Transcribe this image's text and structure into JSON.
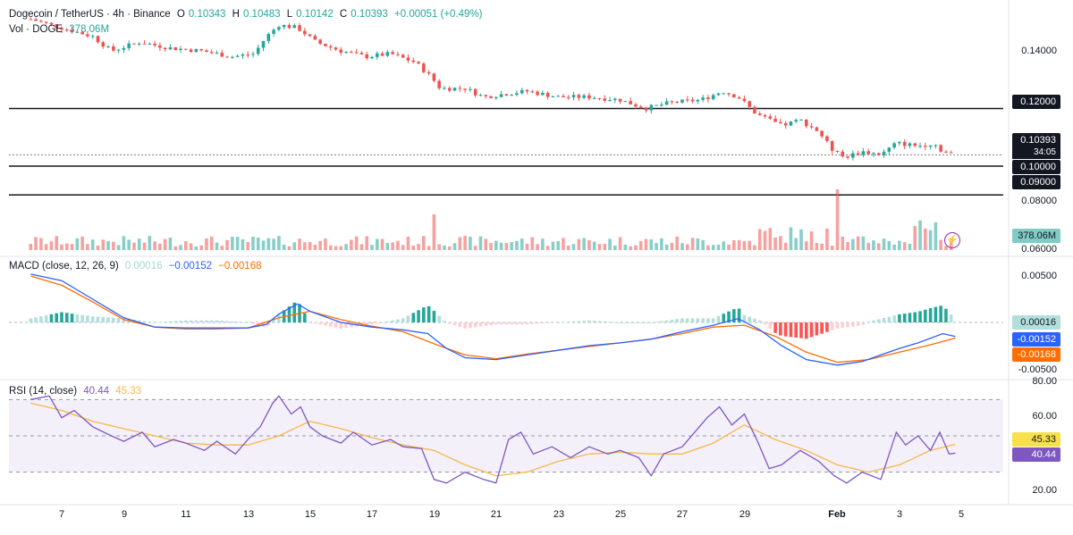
{
  "header": {
    "symbol": "Dogecoin / TetherUS · 4h · Binance",
    "open_label": "O",
    "open": "0.10343",
    "high_label": "H",
    "high": "0.10483",
    "low_label": "L",
    "low": "0.10142",
    "close_label": "C",
    "close": "0.10393",
    "change": "+0.00051 (+0.49%)",
    "vol_label": "Vol · DOGE",
    "vol_value": "378.06M"
  },
  "macd_legend": {
    "label": "MACD (close, 12, 26, 9)",
    "hist": "0.00016",
    "macd": "−0.00152",
    "signal": "−0.00168"
  },
  "rsi_legend": {
    "label": "RSI (14, close)",
    "rsi": "40.44",
    "ma": "45.33"
  },
  "price_axis": {
    "ticks": [
      "0.14000",
      "0.08000",
      "0.06000"
    ],
    "last_price": "0.10393",
    "countdown": "34:05",
    "level_1": "0.12000",
    "level_2": "0.10000",
    "level_3": "0.09000",
    "volume_badge": "378.06M"
  },
  "macd_axis": {
    "ticks": [
      "0.00500",
      "-0.00500"
    ],
    "hist_badge": "0.00016",
    "macd_badge": "-0.00152",
    "signal_badge": "-0.00168"
  },
  "rsi_axis": {
    "ticks": [
      "80.00",
      "60.00",
      "20.00"
    ],
    "ma_badge": "45.33",
    "rsi_badge": "40.44"
  },
  "x_axis": {
    "labels": [
      "7",
      "9",
      "11",
      "13",
      "15",
      "17",
      "19",
      "21",
      "23",
      "25",
      "27",
      "29",
      "Feb",
      "3",
      "5"
    ]
  },
  "colors": {
    "up": "#26a69a",
    "down": "#ef5350",
    "macd": "#2962ff",
    "signal": "#ff6d00",
    "rsi": "#7e57c2",
    "rsi_ma": "#f7b84b"
  },
  "chart_data": [
    {
      "type": "candlestick",
      "title": "Dogecoin / TetherUS · 4h · Binance",
      "x_labels": [
        "7",
        "9",
        "11",
        "13",
        "15",
        "17",
        "19",
        "21",
        "23",
        "25",
        "27",
        "29",
        "Feb",
        "3",
        "5"
      ],
      "horizontal_levels": [
        0.12,
        0.1,
        0.09
      ],
      "last_close": 0.10393,
      "close_path": [
        [
          6.0,
          0.151
        ],
        [
          7.0,
          0.148
        ],
        [
          8.0,
          0.145
        ],
        [
          8.6,
          0.14
        ],
        [
          9.5,
          0.143
        ],
        [
          10.5,
          0.141
        ],
        [
          11.5,
          0.14
        ],
        [
          12.5,
          0.138
        ],
        [
          13.2,
          0.139
        ],
        [
          13.6,
          0.145
        ],
        [
          14.0,
          0.149
        ],
        [
          14.6,
          0.148
        ],
        [
          15.2,
          0.143
        ],
        [
          16.0,
          0.14
        ],
        [
          16.8,
          0.138
        ],
        [
          17.6,
          0.139
        ],
        [
          18.4,
          0.136
        ],
        [
          18.9,
          0.131
        ],
        [
          19.2,
          0.127
        ],
        [
          20.0,
          0.127
        ],
        [
          20.6,
          0.124
        ],
        [
          21.2,
          0.125
        ],
        [
          22.0,
          0.126
        ],
        [
          23.0,
          0.124
        ],
        [
          24.0,
          0.124
        ],
        [
          25.0,
          0.123
        ],
        [
          25.8,
          0.12
        ],
        [
          26.6,
          0.122
        ],
        [
          27.6,
          0.123
        ],
        [
          28.3,
          0.126
        ],
        [
          28.8,
          0.124
        ],
        [
          29.4,
          0.118
        ],
        [
          30.2,
          0.114
        ],
        [
          30.8,
          0.116
        ],
        [
          31.4,
          0.112
        ],
        [
          31.8,
          0.106
        ],
        [
          32.2,
          0.103
        ],
        [
          32.8,
          0.105
        ],
        [
          33.4,
          0.104
        ],
        [
          33.9,
          0.108
        ],
        [
          34.6,
          0.107
        ],
        [
          35.1,
          0.108
        ],
        [
          35.4,
          0.105
        ],
        [
          35.8,
          0.104
        ]
      ]
    },
    {
      "type": "bar",
      "title": "Vol · DOGE",
      "last_value": "378.06M",
      "note": "relative volume heights, max spike near Feb 1"
    },
    {
      "type": "line",
      "title": "MACD (close, 12, 26, 9)",
      "ylim": [
        -0.0055,
        0.006
      ],
      "series": [
        {
          "name": "MACD",
          "x": [
            6,
            7,
            8,
            9,
            10,
            11,
            12,
            13,
            13.6,
            14,
            14.6,
            15,
            16,
            17,
            18,
            18.8,
            19.4,
            20,
            21,
            22,
            23,
            24,
            25,
            26,
            27,
            28,
            28.8,
            29.5,
            30.2,
            31,
            32,
            32.8,
            33.4,
            34,
            34.6,
            35.4,
            35.8
          ],
          "values": [
            0.0052,
            0.0045,
            0.0025,
            0.0005,
            -0.0005,
            -0.0006,
            -0.0006,
            -0.0006,
            -0.0002,
            0.0009,
            0.002,
            0.0012,
            0.0,
            -0.0005,
            -0.0008,
            -0.0012,
            -0.0028,
            -0.0038,
            -0.004,
            -0.0035,
            -0.003,
            -0.0025,
            -0.0022,
            -0.0018,
            -0.001,
            -0.0003,
            0.0004,
            -0.0008,
            -0.0025,
            -0.004,
            -0.0046,
            -0.0042,
            -0.0035,
            -0.0028,
            -0.0022,
            -0.0012,
            -0.00152
          ]
        },
        {
          "name": "Signal",
          "x": [
            6,
            7,
            8,
            9,
            10,
            11,
            12,
            13,
            14,
            15,
            16,
            17,
            18,
            19,
            20,
            21,
            22,
            23,
            24,
            25,
            26,
            27,
            28,
            29,
            30,
            31,
            32,
            33,
            34,
            35,
            35.8
          ],
          "values": [
            0.005,
            0.004,
            0.0022,
            0.0003,
            -0.0005,
            -0.0007,
            -0.0007,
            -0.0006,
            0.0005,
            0.0012,
            0.0003,
            -0.0004,
            -0.001,
            -0.0023,
            -0.0035,
            -0.0039,
            -0.0034,
            -0.003,
            -0.0026,
            -0.0022,
            -0.0018,
            -0.0012,
            -0.0005,
            -0.0003,
            -0.0015,
            -0.0032,
            -0.0043,
            -0.004,
            -0.0032,
            -0.0024,
            -0.00168
          ]
        }
      ]
    },
    {
      "type": "line",
      "title": "RSI (14, close)",
      "ylim": [
        10,
        80
      ],
      "bands": [
        70,
        30
      ],
      "series": [
        {
          "name": "RSI",
          "x": [
            6,
            6.6,
            7,
            7.4,
            8,
            8.6,
            9,
            9.6,
            10,
            10.6,
            11,
            11.6,
            12,
            12.6,
            13,
            13.4,
            13.8,
            14,
            14.4,
            14.7,
            15,
            15.4,
            16,
            16.4,
            17,
            17.6,
            18,
            18.6,
            19,
            19.4,
            20,
            20.6,
            21,
            21.4,
            21.8,
            22.2,
            22.8,
            23.4,
            24,
            24.6,
            25,
            25.6,
            26,
            26.4,
            27,
            27.4,
            27.8,
            28.2,
            28.6,
            29,
            29.4,
            29.8,
            30.2,
            30.8,
            31.4,
            31.9,
            32.3,
            32.8,
            33.4,
            33.9,
            34.2,
            34.6,
            35,
            35.3,
            35.6,
            35.8
          ],
          "values": [
            70,
            72,
            60,
            64,
            55,
            50,
            47,
            52,
            44,
            48,
            46,
            42,
            47,
            40,
            48,
            55,
            68,
            72,
            62,
            66,
            55,
            50,
            46,
            52,
            45,
            48,
            44,
            43,
            26,
            24,
            30,
            26,
            24,
            48,
            52,
            40,
            44,
            38,
            44,
            40,
            42,
            38,
            28,
            40,
            44,
            52,
            60,
            66,
            56,
            62,
            48,
            32,
            34,
            42,
            36,
            28,
            24,
            30,
            26,
            52,
            45,
            50,
            42,
            52,
            40,
            40.44
          ]
        },
        {
          "name": "RSI MA",
          "x": [
            6,
            7,
            8,
            9,
            10,
            11,
            12,
            13,
            14,
            15,
            16,
            17,
            18,
            19,
            20,
            21,
            22,
            23,
            24,
            25,
            26,
            27,
            28,
            29,
            30,
            31,
            32,
            33,
            34,
            35,
            35.8
          ],
          "values": [
            68,
            64,
            58,
            54,
            50,
            46,
            45,
            45,
            50,
            58,
            54,
            49,
            45,
            42,
            34,
            28,
            30,
            36,
            40,
            41,
            40,
            40,
            46,
            56,
            48,
            42,
            34,
            30,
            34,
            42,
            45.33
          ]
        }
      ]
    }
  ]
}
